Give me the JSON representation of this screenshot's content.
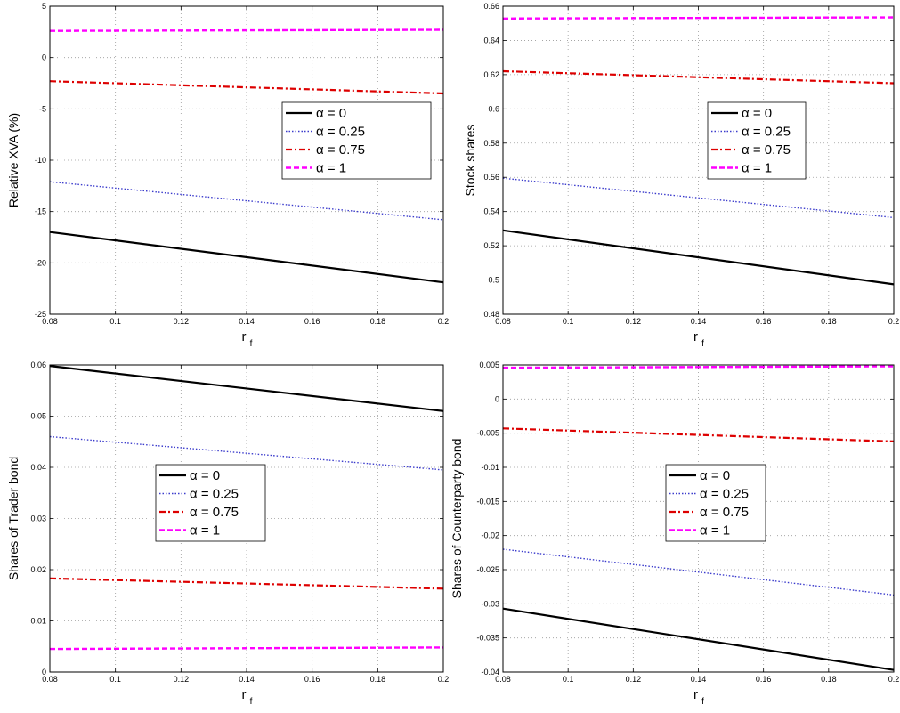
{
  "chart_data": [
    {
      "type": "line",
      "ylabel": "Relative XVA (%)",
      "xlabel": "r",
      "xlabel_sub": "f",
      "xlim": [
        0.08,
        0.2
      ],
      "ylim": [
        -25,
        5
      ],
      "xticks": [
        "0.08",
        "0.1",
        "0.12",
        "0.14",
        "0.16",
        "0.18",
        "0.2"
      ],
      "yticks": [
        "-25",
        "-20",
        "-15",
        "-10",
        "-5",
        "0",
        "5"
      ],
      "grid": true,
      "legend_position": "center-right",
      "x": [
        0.08,
        0.2
      ],
      "series": [
        {
          "name": "α = 0",
          "values": [
            -17.0,
            -21.9
          ],
          "color": "#000000",
          "style": "solid"
        },
        {
          "name": "α = 0.25",
          "values": [
            -12.1,
            -15.8
          ],
          "color": "#3b3bcc",
          "style": "dotted"
        },
        {
          "name": "α = 0.75",
          "values": [
            -2.3,
            -3.5
          ],
          "color": "#dd0000",
          "style": "dashdot"
        },
        {
          "name": "α = 1",
          "values": [
            2.6,
            2.7
          ],
          "color": "#ff00ff",
          "style": "dashed"
        }
      ]
    },
    {
      "type": "line",
      "ylabel": "Stock shares",
      "xlabel": "r",
      "xlabel_sub": "f",
      "xlim": [
        0.08,
        0.2
      ],
      "ylim": [
        0.48,
        0.66
      ],
      "xticks": [
        "0.08",
        "0.1",
        "0.12",
        "0.14",
        "0.16",
        "0.18",
        "0.2"
      ],
      "yticks": [
        "0.48",
        "0.5",
        "0.52",
        "0.54",
        "0.56",
        "0.58",
        "0.6",
        "0.62",
        "0.64",
        "0.66"
      ],
      "grid": true,
      "legend_position": "center-right",
      "x": [
        0.08,
        0.2
      ],
      "series": [
        {
          "name": "α = 0",
          "values": [
            0.529,
            0.4975
          ],
          "color": "#000000",
          "style": "solid"
        },
        {
          "name": "α = 0.25",
          "values": [
            0.5595,
            0.5365
          ],
          "color": "#3b3bcc",
          "style": "dotted"
        },
        {
          "name": "α = 0.75",
          "values": [
            0.622,
            0.615
          ],
          "color": "#dd0000",
          "style": "dashdot"
        },
        {
          "name": "α = 1",
          "values": [
            0.6528,
            0.6535
          ],
          "color": "#ff00ff",
          "style": "dashed"
        }
      ]
    },
    {
      "type": "line",
      "ylabel": "Shares of Trader bond",
      "xlabel": "r",
      "xlabel_sub": "f",
      "xlim": [
        0.08,
        0.2
      ],
      "ylim": [
        0,
        0.06
      ],
      "xticks": [
        "0.08",
        "0.1",
        "0.12",
        "0.14",
        "0.16",
        "0.18",
        "0.2"
      ],
      "yticks": [
        "0",
        "0.01",
        "0.02",
        "0.03",
        "0.04",
        "0.05",
        "0.06"
      ],
      "grid": true,
      "legend_position": "center",
      "x": [
        0.08,
        0.2
      ],
      "series": [
        {
          "name": "α = 0",
          "values": [
            0.0598,
            0.051
          ],
          "color": "#000000",
          "style": "solid"
        },
        {
          "name": "α = 0.25",
          "values": [
            0.046,
            0.0395
          ],
          "color": "#3b3bcc",
          "style": "dotted"
        },
        {
          "name": "α = 0.75",
          "values": [
            0.0183,
            0.0163
          ],
          "color": "#dd0000",
          "style": "dashdot"
        },
        {
          "name": "α = 1",
          "values": [
            0.0045,
            0.0048
          ],
          "color": "#ff00ff",
          "style": "dashed"
        }
      ]
    },
    {
      "type": "line",
      "ylabel": "Shares of Counterparty bond",
      "xlabel": "r",
      "xlabel_sub": "f",
      "xlim": [
        0.08,
        0.2
      ],
      "ylim": [
        -0.04,
        0.005
      ],
      "xticks": [
        "0.08",
        "0.1",
        "0.12",
        "0.14",
        "0.16",
        "0.18",
        "0.2"
      ],
      "yticks": [
        "-0.04",
        "-0.035",
        "-0.03",
        "-0.025",
        "-0.02",
        "-0.015",
        "-0.01",
        "-0.005",
        "0",
        "0.005"
      ],
      "grid": true,
      "legend_position": "center",
      "x": [
        0.08,
        0.2
      ],
      "series": [
        {
          "name": "α = 0",
          "values": [
            -0.0307,
            -0.0397
          ],
          "color": "#000000",
          "style": "solid"
        },
        {
          "name": "α = 0.25",
          "values": [
            -0.022,
            -0.0287
          ],
          "color": "#3b3bcc",
          "style": "dotted"
        },
        {
          "name": "α = 0.75",
          "values": [
            -0.0043,
            -0.0062
          ],
          "color": "#dd0000",
          "style": "dashdot"
        },
        {
          "name": "α = 1",
          "values": [
            0.0046,
            0.0048
          ],
          "color": "#ff00ff",
          "style": "dashed"
        }
      ]
    }
  ]
}
